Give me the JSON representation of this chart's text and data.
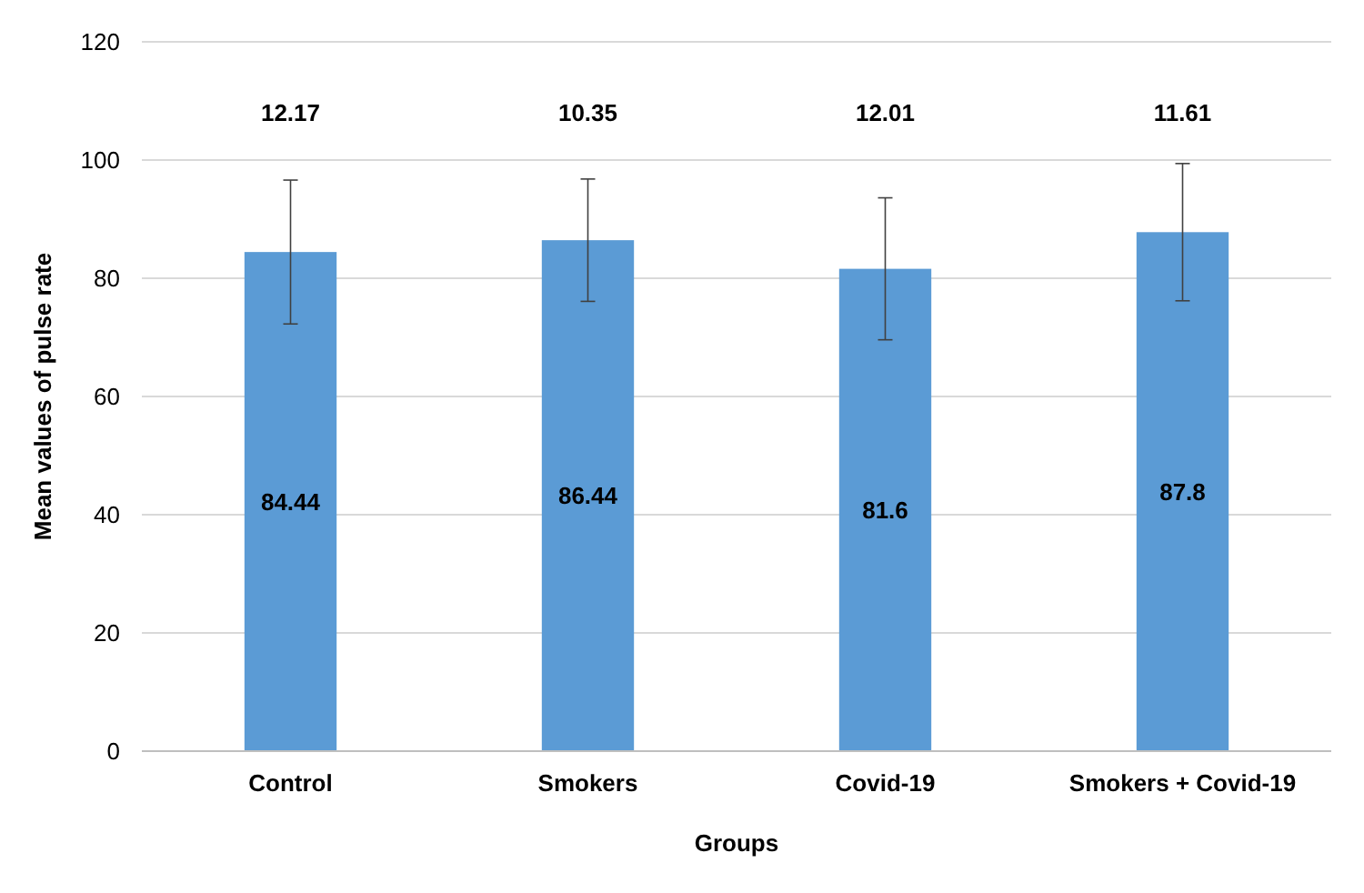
{
  "chart_data": {
    "type": "bar",
    "xlabel": "Groups",
    "ylabel": "Mean values of pulse rate",
    "categories": [
      "Control",
      "Smokers",
      "Covid-19",
      "Smokers + Covid-19"
    ],
    "values": [
      84.44,
      86.44,
      81.6,
      87.8
    ],
    "color": "#5b9bd5",
    "errors": [
      12.17,
      10.35,
      12.01,
      11.61
    ],
    "data_labels": true,
    "annotations": [
      "12.17",
      "10.35",
      "12.01",
      "11.61"
    ],
    "ylim": [
      0,
      120
    ],
    "yticks": [
      0,
      20,
      40,
      60,
      80,
      100,
      120
    ],
    "grid": "y"
  }
}
